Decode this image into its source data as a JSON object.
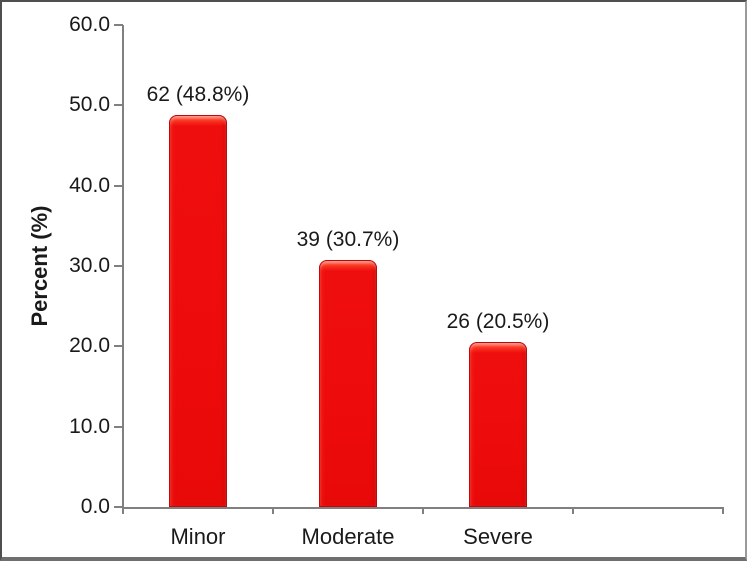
{
  "chart_data": {
    "type": "bar",
    "title": "",
    "xlabel": "",
    "ylabel": "Percent (%)",
    "ylim": [
      0,
      60
    ],
    "ytick_step": 10,
    "ytick_labels": [
      "0.0",
      "10.0",
      "20.0",
      "30.0",
      "40.0",
      "50.0",
      "60.0"
    ],
    "categories": [
      "Minor",
      "Moderate",
      "Severe"
    ],
    "counts": [
      62,
      39,
      26
    ],
    "values": [
      48.8,
      30.7,
      20.5
    ],
    "data_labels": [
      "62 (48.8%)",
      "39 (30.7%)",
      "26 (20.5%)"
    ],
    "legend": "none",
    "grid": false,
    "num_category_slots": 4,
    "colors": {
      "bar_fill": "#ee0b0b",
      "bar_highlight": "#ff8d7c",
      "bar_outline": "#c10808",
      "axis": "#808080",
      "text": "#1a1a1a",
      "background": "#ffffff",
      "frame_border": "#6f6f6f"
    }
  }
}
